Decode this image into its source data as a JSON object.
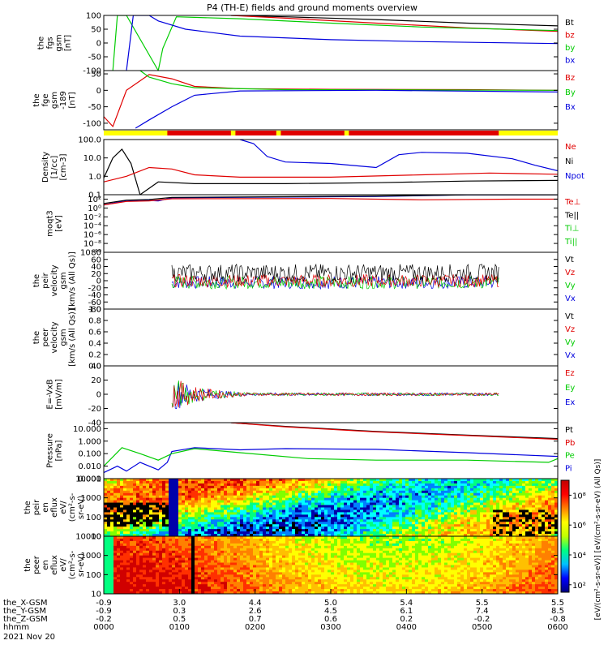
{
  "title": "P4 (TH-E) fields and ground moments overview",
  "colors": {
    "black": "#000000",
    "red": "#e00000",
    "green": "#00cc00",
    "blue": "#0000dd",
    "yellow": "#ffff00"
  },
  "chart_data": [
    {
      "id": "fgs",
      "type": "line",
      "ylabel": [
        "the",
        "fgs",
        "gsm",
        "[nT]"
      ],
      "ylim": [
        -100,
        100
      ],
      "ticks": [
        "100",
        "50",
        "0",
        "-50",
        "-100"
      ],
      "tickvals": [
        100,
        50,
        0,
        -50,
        -100
      ],
      "legend": [
        {
          "name": "Bt",
          "color": "black"
        },
        {
          "name": "bz",
          "color": "red"
        },
        {
          "name": "by",
          "color": "green"
        },
        {
          "name": "bx",
          "color": "blue"
        }
      ],
      "series": [
        {
          "color": "black",
          "points": [
            [
              0.28,
              100
            ],
            [
              0.4,
              95
            ],
            [
              0.6,
              85
            ],
            [
              0.8,
              72
            ],
            [
              1.0,
              62
            ]
          ]
        },
        {
          "color": "red",
          "points": [
            [
              0.28,
              100
            ],
            [
              0.4,
              90
            ],
            [
              0.6,
              72
            ],
            [
              0.8,
              55
            ],
            [
              1.0,
              42
            ]
          ]
        },
        {
          "color": "green",
          "points": [
            [
              0.02,
              -100
            ],
            [
              0.03,
              100
            ],
            [
              0.05,
              100
            ],
            [
              0.12,
              -100
            ],
            [
              0.13,
              -20
            ],
            [
              0.16,
              95
            ],
            [
              0.3,
              88
            ],
            [
              0.5,
              72
            ],
            [
              0.7,
              58
            ],
            [
              1.0,
              45
            ]
          ]
        },
        {
          "color": "blue",
          "points": [
            [
              0.05,
              -100
            ],
            [
              0.065,
              100
            ],
            [
              0.1,
              100
            ],
            [
              0.12,
              80
            ],
            [
              0.18,
              50
            ],
            [
              0.3,
              25
            ],
            [
              0.5,
              12
            ],
            [
              0.7,
              5
            ],
            [
              1.0,
              -2
            ]
          ]
        }
      ]
    },
    {
      "id": "fge",
      "type": "line",
      "ylabel": [
        "the",
        "fge",
        "gsm",
        "-189",
        "[nT]"
      ],
      "ylim": [
        -120,
        60
      ],
      "ticks": [
        "50",
        "0",
        "-50",
        "-100"
      ],
      "tickvals": [
        50,
        0,
        -50,
        -100
      ],
      "legend": [
        {
          "name": "Bz",
          "color": "red"
        },
        {
          "name": "By",
          "color": "green"
        },
        {
          "name": "Bx",
          "color": "blue"
        }
      ],
      "series": [
        {
          "color": "red",
          "points": [
            [
              0,
              -80
            ],
            [
              0.02,
              -110
            ],
            [
              0.05,
              0
            ],
            [
              0.1,
              48
            ],
            [
              0.15,
              35
            ],
            [
              0.2,
              12
            ],
            [
              0.3,
              5
            ],
            [
              0.5,
              3
            ],
            [
              0.8,
              2
            ],
            [
              1.0,
              0
            ]
          ]
        },
        {
          "color": "green",
          "points": [
            [
              0.08,
              60
            ],
            [
              0.1,
              40
            ],
            [
              0.15,
              20
            ],
            [
              0.2,
              8
            ],
            [
              0.4,
              2
            ],
            [
              1.0,
              0
            ]
          ]
        },
        {
          "color": "blue",
          "points": [
            [
              0.07,
              -115
            ],
            [
              0.1,
              -90
            ],
            [
              0.15,
              -50
            ],
            [
              0.2,
              -15
            ],
            [
              0.3,
              -2
            ],
            [
              0.6,
              0
            ],
            [
              1.0,
              -5
            ]
          ]
        }
      ]
    },
    {
      "id": "density",
      "type": "line",
      "ylabel": [
        "Density",
        "[1/cc]",
        "[cm-3]"
      ],
      "ylim": [
        0.1,
        100
      ],
      "scale": "log",
      "ticks": [
        "100.0",
        "10.0",
        "1.0",
        "0.1"
      ],
      "tickvals": [
        100,
        10,
        1,
        0.1
      ],
      "legend": [
        {
          "name": "Ne",
          "color": "red"
        },
        {
          "name": "Ni",
          "color": "black"
        },
        {
          "name": "Npot",
          "color": "blue"
        }
      ],
      "series": [
        {
          "color": "black",
          "points": [
            [
              0,
              0.8
            ],
            [
              0.02,
              10
            ],
            [
              0.04,
              30
            ],
            [
              0.06,
              5
            ],
            [
              0.08,
              0.1
            ],
            [
              0.12,
              0.5
            ],
            [
              0.2,
              0.4
            ],
            [
              0.4,
              0.4
            ],
            [
              0.6,
              0.45
            ],
            [
              0.8,
              0.55
            ],
            [
              1.0,
              0.6
            ]
          ]
        },
        {
          "color": "red",
          "points": [
            [
              0,
              0.5
            ],
            [
              0.05,
              1
            ],
            [
              0.1,
              3
            ],
            [
              0.15,
              2.5
            ],
            [
              0.2,
              1.2
            ],
            [
              0.3,
              0.9
            ],
            [
              0.5,
              0.9
            ],
            [
              0.7,
              1.2
            ],
            [
              0.85,
              1.5
            ],
            [
              1.0,
              1.3
            ]
          ]
        },
        {
          "color": "blue",
          "points": [
            [
              0.3,
              100
            ],
            [
              0.33,
              60
            ],
            [
              0.36,
              12
            ],
            [
              0.4,
              6
            ],
            [
              0.5,
              5
            ],
            [
              0.6,
              3
            ],
            [
              0.65,
              15
            ],
            [
              0.7,
              20
            ],
            [
              0.8,
              18
            ],
            [
              0.9,
              9
            ],
            [
              0.95,
              4
            ],
            [
              1.0,
              2
            ]
          ]
        }
      ]
    },
    {
      "id": "temp",
      "type": "line",
      "ylabel": [
        "moqt3",
        "[eV]"
      ],
      "ylim": [
        1e-10,
        1000.0
      ],
      "scale": "log",
      "ticks": [
        "10²",
        "10⁰",
        "10⁻²",
        "10⁻⁴",
        "10⁻⁶",
        "10⁻⁸",
        "10⁻¹⁰"
      ],
      "tickvals": [
        100,
        1,
        0.01,
        0.0001,
        1e-06,
        1e-08,
        1e-10
      ],
      "legend": [
        {
          "name": "Te⊥",
          "color": "red"
        },
        {
          "name": "Te||",
          "color": "black"
        },
        {
          "name": "Ti⊥",
          "color": "green"
        },
        {
          "name": "Ti||",
          "color": "green"
        }
      ],
      "series": [
        {
          "color": "blue",
          "points": [
            [
              0,
              5
            ],
            [
              0.04,
              30
            ],
            [
              0.08,
              60
            ],
            [
              0.12,
              40
            ],
            [
              0.15,
              200
            ],
            [
              0.4,
              300
            ],
            [
              0.6,
              400
            ],
            [
              0.8,
              900
            ],
            [
              1.0,
              1000
            ]
          ]
        },
        {
          "color": "black",
          "points": [
            [
              0,
              10
            ],
            [
              0.05,
              60
            ],
            [
              0.1,
              80
            ],
            [
              0.15,
              250
            ],
            [
              0.4,
              350
            ],
            [
              0.6,
              500
            ],
            [
              0.8,
              900
            ],
            [
              1.0,
              950
            ]
          ]
        },
        {
          "color": "red",
          "points": [
            [
              0,
              5
            ],
            [
              0.05,
              30
            ],
            [
              0.1,
              40
            ],
            [
              0.15,
              120
            ],
            [
              0.5,
              140
            ],
            [
              0.7,
              70
            ],
            [
              0.9,
              100
            ],
            [
              1.0,
              100
            ]
          ]
        }
      ]
    },
    {
      "id": "peir",
      "type": "line",
      "ylabel": [
        "the",
        "peir",
        "velocity",
        "gsm",
        "[km/s (All Qs)]"
      ],
      "ylim": [
        -80,
        80
      ],
      "ticks": [
        "80",
        "60",
        "40",
        "20",
        "0",
        "-20",
        "-40",
        "-60",
        "-80"
      ],
      "tickvals": [
        80,
        60,
        40,
        20,
        0,
        -20,
        -40,
        -60,
        -80
      ],
      "legend": [
        {
          "name": "Vt",
          "color": "black"
        },
        {
          "name": "Vz",
          "color": "red"
        },
        {
          "name": "Vy",
          "color": "green"
        },
        {
          "name": "Vx",
          "color": "blue"
        }
      ],
      "series": []
    },
    {
      "id": "peer",
      "type": "line",
      "ylabel": [
        "the",
        "peer",
        "velocity",
        "gsm",
        "[km/s (All Qs)]"
      ],
      "ylim": [
        0,
        1
      ],
      "ticks": [
        "1.0",
        "0.8",
        "0.6",
        "0.4",
        "0.2",
        "0.0"
      ],
      "tickvals": [
        1,
        0.8,
        0.6,
        0.4,
        0.2,
        0
      ],
      "legend": [
        {
          "name": "Vt",
          "color": "black"
        },
        {
          "name": "Vz",
          "color": "red"
        },
        {
          "name": "Vy",
          "color": "green"
        },
        {
          "name": "Vx",
          "color": "blue"
        }
      ],
      "series": []
    },
    {
      "id": "efield",
      "type": "line",
      "ylabel": [
        "E=-VxB",
        "[mV/m]"
      ],
      "ylim": [
        -40,
        40
      ],
      "ticks": [
        "40",
        "20",
        "0",
        "-20",
        "-40"
      ],
      "tickvals": [
        40,
        20,
        0,
        -20,
        -40
      ],
      "legend": [
        {
          "name": "Ez",
          "color": "red"
        },
        {
          "name": "Ey",
          "color": "green"
        },
        {
          "name": "Ex",
          "color": "blue"
        }
      ],
      "series": []
    },
    {
      "id": "pressure",
      "type": "line",
      "ylabel": [
        "Pressure",
        "[nPa]"
      ],
      "ylim": [
        0.001,
        30
      ],
      "scale": "log",
      "ticks": [
        "10.000",
        "1.000",
        "0.100",
        "0.010",
        "0.001"
      ],
      "tickvals": [
        10,
        1,
        0.1,
        0.01,
        0.001
      ],
      "legend": [
        {
          "name": "Pt",
          "color": "black"
        },
        {
          "name": "Pb",
          "color": "red"
        },
        {
          "name": "Pe",
          "color": "green"
        },
        {
          "name": "Pi",
          "color": "blue"
        }
      ],
      "series": [
        {
          "color": "black",
          "points": [
            [
              0.28,
              30
            ],
            [
              0.4,
              15
            ],
            [
              0.6,
              6
            ],
            [
              0.8,
              3
            ],
            [
              1.0,
              1.6
            ]
          ]
        },
        {
          "color": "red",
          "points": [
            [
              0.28,
              30
            ],
            [
              0.4,
              14
            ],
            [
              0.6,
              5.5
            ],
            [
              0.8,
              2.8
            ],
            [
              1.0,
              1.4
            ]
          ]
        },
        {
          "color": "blue",
          "points": [
            [
              0,
              0.003
            ],
            [
              0.03,
              0.01
            ],
            [
              0.05,
              0.004
            ],
            [
              0.08,
              0.02
            ],
            [
              0.12,
              0.005
            ],
            [
              0.14,
              0.02
            ],
            [
              0.15,
              0.15
            ],
            [
              0.2,
              0.3
            ],
            [
              0.3,
              0.2
            ],
            [
              0.4,
              0.25
            ],
            [
              0.6,
              0.22
            ],
            [
              0.8,
              0.12
            ],
            [
              1.0,
              0.06
            ]
          ]
        },
        {
          "color": "green",
          "points": [
            [
              0,
              0.01
            ],
            [
              0.04,
              0.3
            ],
            [
              0.08,
              0.1
            ],
            [
              0.12,
              0.03
            ],
            [
              0.15,
              0.1
            ],
            [
              0.2,
              0.25
            ],
            [
              0.3,
              0.12
            ],
            [
              0.45,
              0.04
            ],
            [
              0.6,
              0.03
            ],
            [
              0.8,
              0.03
            ],
            [
              0.98,
              0.02
            ],
            [
              1.0,
              0.04
            ]
          ]
        }
      ]
    },
    {
      "id": "peir_en",
      "type": "heatmap",
      "ylabel": [
        "the",
        "peir",
        "en",
        "eflux",
        "eV/",
        "(cm²-s-",
        "sr-eV)"
      ],
      "ylim": [
        10,
        10000
      ],
      "scale": "log",
      "ticks": [
        "10000",
        "1000",
        "100",
        "10"
      ],
      "tickvals": [
        10000,
        1000,
        100,
        10
      ]
    },
    {
      "id": "peer_en",
      "type": "heatmap",
      "ylabel": [
        "the",
        "peer",
        "en",
        "eflux",
        "eV/",
        "(cm²-s-",
        "sr-eV)"
      ],
      "ylim": [
        10,
        10000
      ],
      "scale": "log",
      "ticks": [
        "10000",
        "1000",
        "100",
        "10"
      ],
      "tickvals": [
        10000,
        1000,
        100,
        10
      ]
    }
  ],
  "colorbar": {
    "ticks": [
      "10⁸",
      "10⁶",
      "10⁴",
      "10²"
    ],
    "tickvals": [
      8,
      6,
      4,
      2
    ],
    "label": "[eV/(cm²-s-sr-eV)]  [eV/(cm²-s-sr-eV) (All Qs)]"
  },
  "xaxis": {
    "rows": [
      {
        "label": "the_X-GSM",
        "values": [
          "-0.9",
          "3.0",
          "4.4",
          "5.0",
          "5.4",
          "5.5",
          "5.5"
        ]
      },
      {
        "label": "the_Y-GSM",
        "values": [
          "-0.9",
          "0.3",
          "2.6",
          "4.5",
          "6.1",
          "7.4",
          "8.5"
        ]
      },
      {
        "label": "the_Z-GSM",
        "values": [
          "-0.2",
          "0.5",
          "0.7",
          "0.6",
          "0.2",
          "-0.2",
          "-0.8"
        ]
      },
      {
        "label": "hhmm",
        "values": [
          "0000",
          "0100",
          "0200",
          "0300",
          "0400",
          "0500",
          "0600"
        ]
      }
    ],
    "date": "2021 Nov 20"
  }
}
